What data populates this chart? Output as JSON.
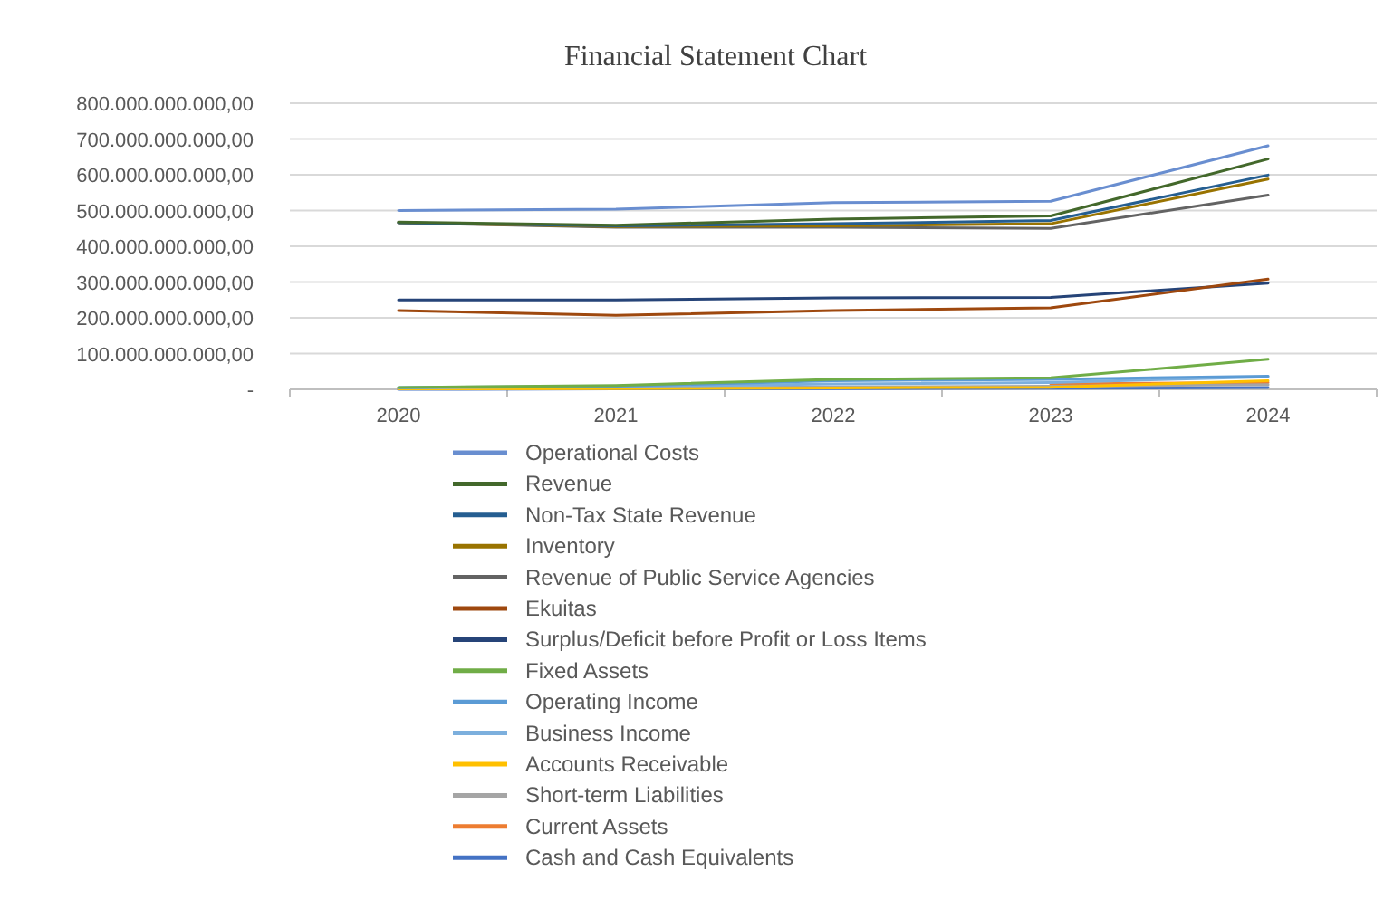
{
  "chart_data": {
    "type": "line",
    "title": "Financial Statement Chart",
    "categories": [
      "2020",
      "2021",
      "2022",
      "2023",
      "2024"
    ],
    "ylim": [
      0,
      800000000000
    ],
    "yticks": [
      {
        "value": 0,
        "label": "-"
      },
      {
        "value": 100000000000,
        "label": "100.000.000.000,00"
      },
      {
        "value": 200000000000,
        "label": "200.000.000.000,00"
      },
      {
        "value": 300000000000,
        "label": "300.000.000.000,00"
      },
      {
        "value": 400000000000,
        "label": "400.000.000.000,00"
      },
      {
        "value": 500000000000,
        "label": "500.000.000.000,00"
      },
      {
        "value": 600000000000,
        "label": "600.000.000.000,00"
      },
      {
        "value": 700000000000,
        "label": "700.000.000.000,00"
      },
      {
        "value": 800000000000,
        "label": "800.000.000.000,00"
      }
    ],
    "grid": "y",
    "legend": "bottom",
    "marker": "none",
    "series": [
      {
        "name": "Operational Costs",
        "color": "#698ed0",
        "values": [
          500000000000,
          504000000000,
          522000000000,
          526000000000,
          681000000000
        ]
      },
      {
        "name": "Revenue",
        "color": "#43682b",
        "values": [
          468000000000,
          459000000000,
          476000000000,
          485000000000,
          644000000000
        ]
      },
      {
        "name": "Non-Tax State Revenue",
        "color": "#255e91",
        "values": [
          466000000000,
          457000000000,
          463000000000,
          472000000000,
          599000000000
        ]
      },
      {
        "name": "Inventory",
        "color": "#997300",
        "values": [
          466000000000,
          455000000000,
          457000000000,
          463000000000,
          588000000000
        ]
      },
      {
        "name": "Revenue of Public Service Agencies",
        "color": "#636363",
        "values": [
          466000000000,
          453000000000,
          453000000000,
          450000000000,
          543000000000
        ]
      },
      {
        "name": "Ekuitas",
        "color": "#9e480e",
        "values": [
          220000000000,
          207000000000,
          220000000000,
          228000000000,
          308000000000
        ]
      },
      {
        "name": "Surplus/Deficit before Profit or Loss Items",
        "color": "#264478",
        "values": [
          250000000000,
          250000000000,
          256000000000,
          257000000000,
          297000000000
        ]
      },
      {
        "name": "Fixed Assets",
        "color": "#70ad47",
        "values": [
          5000000000,
          11000000000,
          28000000000,
          32000000000,
          84000000000
        ]
      },
      {
        "name": "Operating Income",
        "color": "#5b9bd5",
        "values": [
          5000000000,
          9000000000,
          24000000000,
          28000000000,
          37000000000
        ]
      },
      {
        "name": "Business Income",
        "color": "#7cafdd",
        "values": [
          4000000000,
          8000000000,
          15000000000,
          19000000000,
          35000000000
        ]
      },
      {
        "name": "Accounts Receivable",
        "color": "#ffc000",
        "values": [
          1000000000,
          2000000000,
          4000000000,
          6000000000,
          24000000000
        ]
      },
      {
        "name": "Short-term Liabilities",
        "color": "#a5a5a5",
        "values": [
          2000000000,
          4000000000,
          7000000000,
          9000000000,
          13000000000
        ]
      },
      {
        "name": "Current Assets",
        "color": "#ed7d31",
        "values": [
          null,
          null,
          null,
          15000000000,
          19000000000
        ]
      },
      {
        "name": "Cash and Cash Equivalents",
        "color": "#4472c4",
        "values": [
          0,
          1000000000,
          2000000000,
          3000000000,
          5000000000
        ]
      }
    ]
  }
}
